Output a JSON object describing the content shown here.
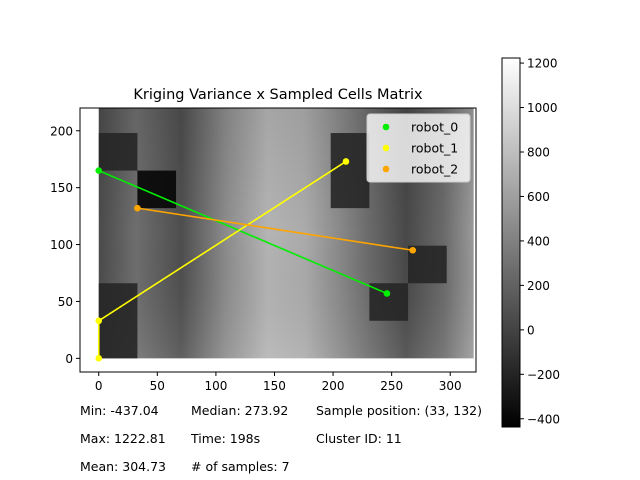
{
  "chart_data": {
    "type": "heatmap",
    "title": "Kriging Variance x Sampled Cells Matrix",
    "xlabel": "",
    "ylabel": "",
    "xlim": [
      -16,
      322
    ],
    "ylim": [
      -12,
      220
    ],
    "x_ticks": [
      0,
      50,
      100,
      150,
      200,
      250,
      300
    ],
    "y_ticks": [
      0,
      50,
      100,
      150,
      200
    ],
    "grid": false,
    "legend_position": "top-right",
    "colorbar": {
      "min": -437.04,
      "max": 1222.81,
      "ticks": [
        -400,
        -200,
        0,
        200,
        400,
        600,
        800,
        1000,
        1200
      ],
      "colormap": "gray"
    },
    "heatmap_extent": {
      "x": [
        0,
        320
      ],
      "y": [
        0,
        220
      ]
    },
    "series": [
      {
        "name": "robot_0",
        "color": "#00ee00",
        "points": [
          [
            0,
            165
          ],
          [
            246,
            57
          ]
        ]
      },
      {
        "name": "robot_1",
        "color": "#ffff00",
        "points": [
          [
            211,
            173
          ],
          [
            0,
            33
          ],
          [
            0,
            0
          ]
        ]
      },
      {
        "name": "robot_2",
        "color": "#ffa500",
        "points": [
          [
            33,
            132
          ],
          [
            268,
            95
          ]
        ]
      }
    ],
    "sampled_cells": [
      {
        "x": [
          0,
          33
        ],
        "y": [
          165,
          198
        ],
        "level": "dark"
      },
      {
        "x": [
          33,
          66
        ],
        "y": [
          132,
          165
        ],
        "level": "black"
      },
      {
        "x": [
          0,
          33
        ],
        "y": [
          0,
          66
        ],
        "level": "dark"
      },
      {
        "x": [
          198,
          231
        ],
        "y": [
          132,
          198
        ],
        "level": "dark"
      },
      {
        "x": [
          231,
          264
        ],
        "y": [
          33,
          66
        ],
        "level": "dark"
      },
      {
        "x": [
          264,
          297
        ],
        "y": [
          66,
          99
        ],
        "level": "dark"
      }
    ]
  },
  "stats": {
    "min": "Min: -437.04",
    "median": "Median: 273.92",
    "sample_position": "Sample position: (33, 132)",
    "max": "Max: 1222.81",
    "time": "Time: 198s",
    "cluster": "Cluster ID: 11",
    "mean": "Mean: 304.73",
    "samples": "# of samples: 7"
  }
}
